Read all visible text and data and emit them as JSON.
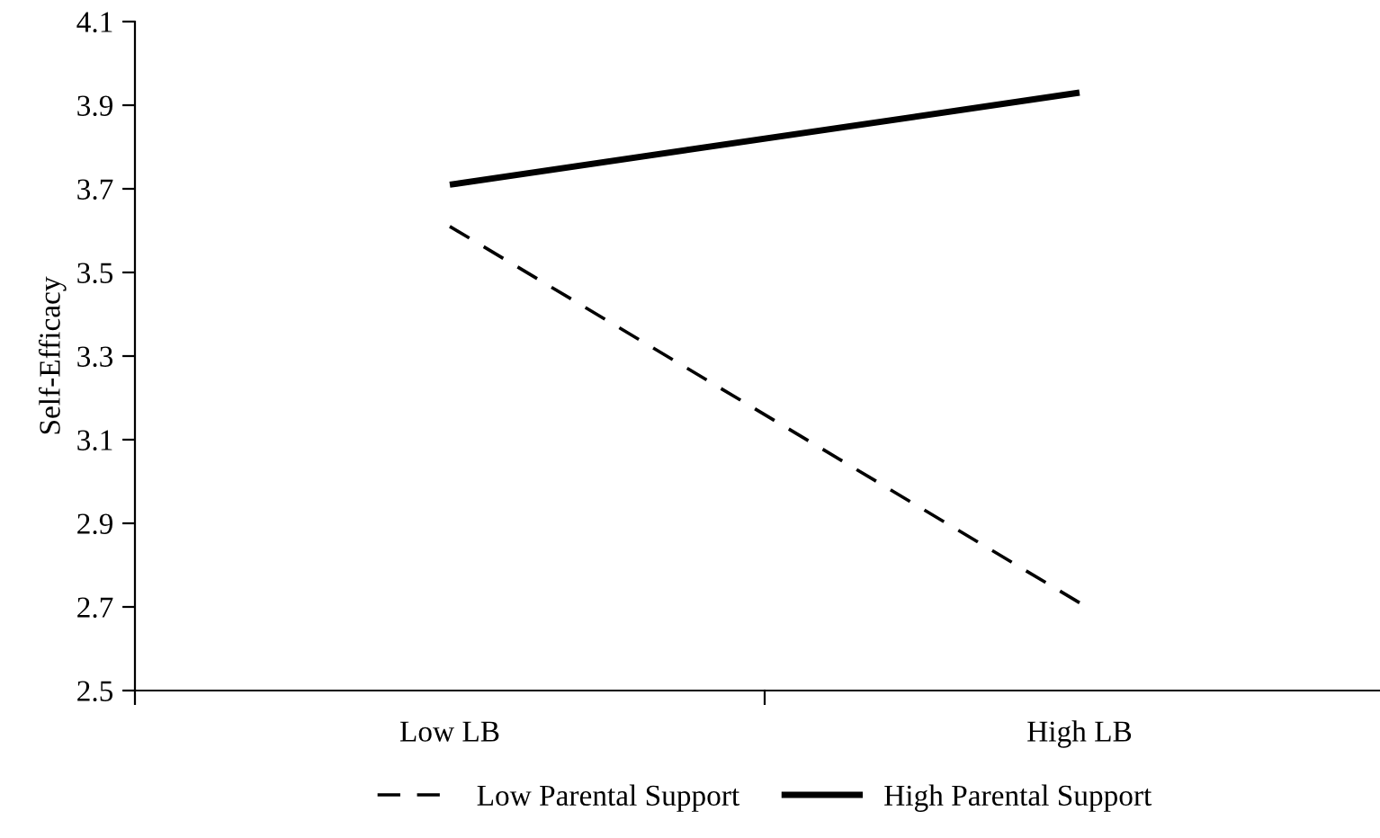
{
  "chart_data": {
    "type": "line",
    "ylabel": "Self-Efficacy",
    "categories": [
      "Low LB",
      "High LB"
    ],
    "series": [
      {
        "name": "Low Parental Support",
        "color": "#000000",
        "line_style": "dashed",
        "values": [
          3.61,
          2.71
        ]
      },
      {
        "name": "High Parental Support",
        "color": "#000000",
        "line_style": "solid",
        "values": [
          3.71,
          3.93
        ]
      }
    ],
    "ylim": [
      2.5,
      4.1
    ],
    "yticks": [
      2.5,
      2.7,
      2.9,
      3.1,
      3.3,
      3.5,
      3.7,
      3.9,
      4.1
    ],
    "grid": false,
    "legend": "bottom",
    "marker": "none"
  }
}
